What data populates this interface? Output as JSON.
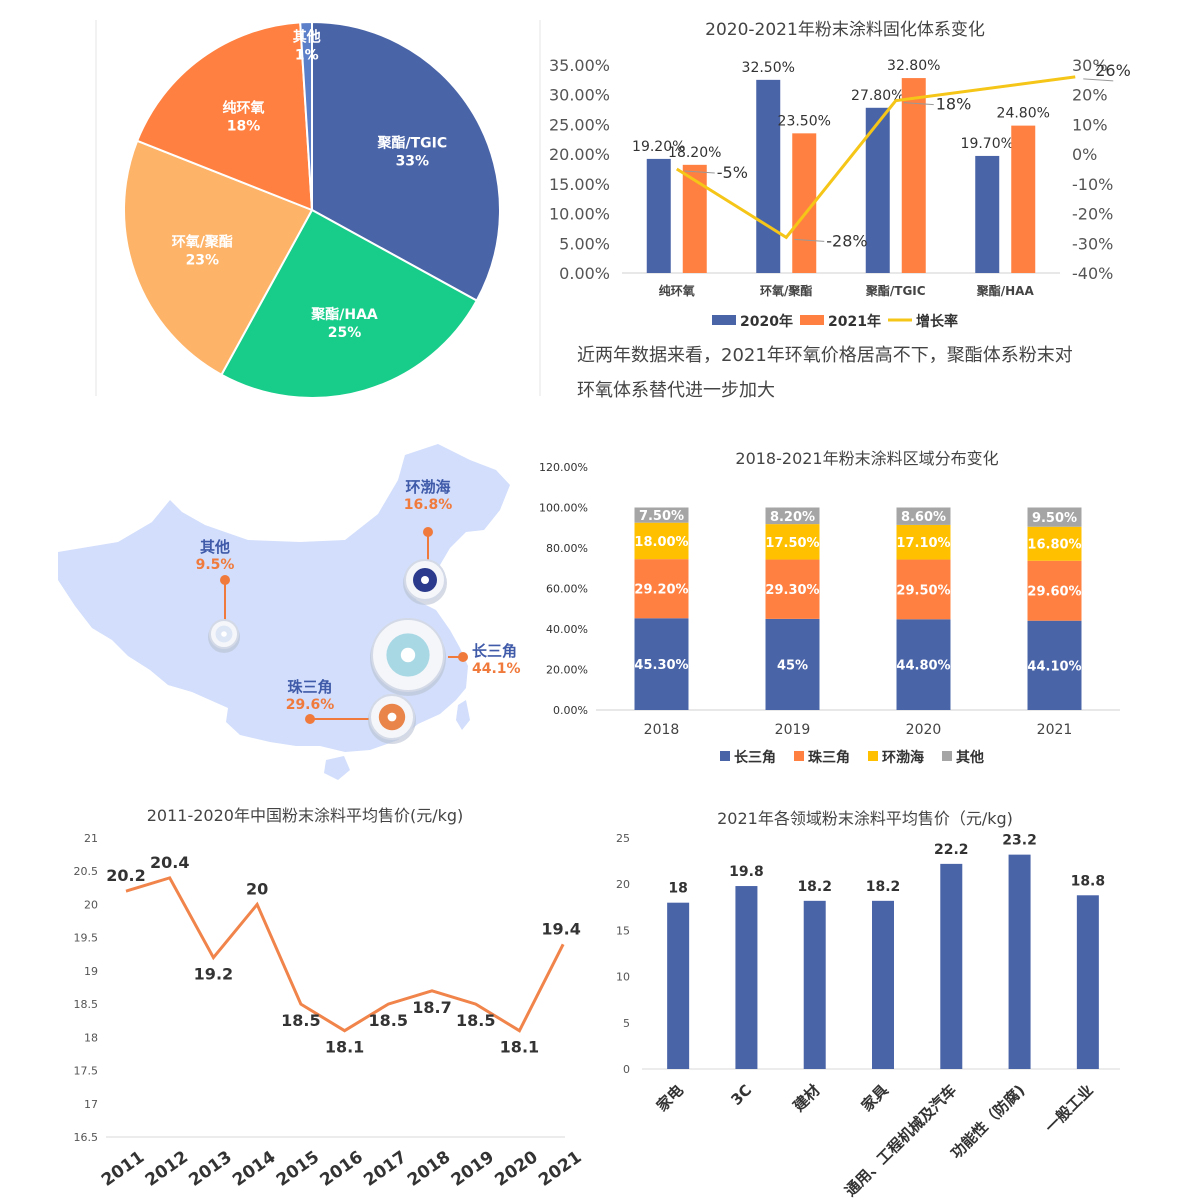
{
  "pie": {
    "chart_data": {
      "type": "pie",
      "slices": [
        {
          "label": "聚酯/TGIC",
          "value": 33,
          "display": "33%",
          "color": "#4A64A8"
        },
        {
          "label": "聚酯/HAA",
          "value": 25,
          "display": "25%",
          "color": "#18CC8A"
        },
        {
          "label": "环氧/聚酯",
          "value": 23,
          "display": "23%",
          "color": "#FDB368"
        },
        {
          "label": "纯环氧",
          "value": 18,
          "display": "18%",
          "color": "#FF8040"
        },
        {
          "label": "其他",
          "value": 1,
          "display": "1%",
          "color": "#5B7FC9"
        }
      ]
    }
  },
  "combo": {
    "chart_data": {
      "type": "bar",
      "title": "2020-2021年粉末涂料固化体系变化",
      "categories": [
        "纯环氧",
        "环氧/聚酯",
        "聚酯/TGIC",
        "聚酯/HAA"
      ],
      "series": [
        {
          "name": "2020年",
          "values": [
            19.2,
            32.5,
            27.8,
            19.7
          ],
          "labels": [
            "19.20%",
            "32.50%",
            "27.80%",
            "19.70%"
          ],
          "color": "#4A64A8"
        },
        {
          "name": "2021年",
          "values": [
            18.2,
            23.5,
            32.8,
            24.8
          ],
          "labels": [
            "18.20%",
            "23.50%",
            "32.80%",
            "24.80%"
          ],
          "color": "#FF8040"
        }
      ],
      "line": {
        "name": "增长率",
        "values": [
          -5,
          -28,
          18,
          26
        ],
        "labels": [
          "-5%",
          "-28%",
          "18%",
          "26%"
        ],
        "color": "#F5C518"
      },
      "ylim_left": [
        0,
        35
      ],
      "yticks_left": [
        "0.00%",
        "5.00%",
        "10.00%",
        "15.00%",
        "20.00%",
        "25.00%",
        "30.00%",
        "35.00%"
      ],
      "ylim_right": [
        -40,
        30
      ],
      "yticks_right": [
        "-40%",
        "-30%",
        "-20%",
        "-10%",
        "0%",
        "10%",
        "20%",
        "30%"
      ]
    },
    "caption_line1": "近两年数据来看，2021年环氧价格居高不下，聚酯体系粉末对",
    "caption_line2": "环氧体系替代进一步加大"
  },
  "map": {
    "regions": [
      {
        "name": "环渤海",
        "value": "16.8%"
      },
      {
        "name": "其他",
        "value": "9.5%"
      },
      {
        "name": "长三角",
        "value": "44.1%"
      },
      {
        "name": "珠三角",
        "value": "29.6%"
      }
    ],
    "colors": {
      "land": "#D2DEFB",
      "name": "#3F5AA8",
      "value": "#F07A3C"
    }
  },
  "stacked": {
    "chart_data": {
      "type": "bar",
      "title": "2018-2021年粉末涂料区域分布变化",
      "categories": [
        "2018",
        "2019",
        "2020",
        "2021"
      ],
      "series": [
        {
          "name": "长三角",
          "values": [
            45.3,
            45,
            44.8,
            44.1
          ],
          "labels": [
            "45.30%",
            "45%",
            "44.80%",
            "44.10%"
          ],
          "color": "#4A64A8"
        },
        {
          "name": "珠三角",
          "values": [
            29.2,
            29.3,
            29.5,
            29.6
          ],
          "labels": [
            "29.20%",
            "29.30%",
            "29.50%",
            "29.60%"
          ],
          "color": "#FF8040"
        },
        {
          "name": "环渤海",
          "values": [
            18.0,
            17.5,
            17.1,
            16.8
          ],
          "labels": [
            "18.00%",
            "17.50%",
            "17.10%",
            "16.80%"
          ],
          "color": "#FFC000"
        },
        {
          "name": "其他",
          "values": [
            7.5,
            8.2,
            8.6,
            9.5
          ],
          "labels": [
            "7.50%",
            "8.20%",
            "8.60%",
            "9.50%"
          ],
          "color": "#A5A5A5"
        }
      ],
      "ylim": [
        0,
        120
      ],
      "yticks": [
        "0.00%",
        "20.00%",
        "40.00%",
        "60.00%",
        "80.00%",
        "100.00%",
        "120.00%"
      ]
    }
  },
  "price_line": {
    "chart_data": {
      "type": "line",
      "title": "2011-2020年中国粉末涂料平均售价(元/kg)",
      "x": [
        "2011",
        "2012",
        "2013",
        "2014",
        "2015",
        "2016",
        "2017",
        "2018",
        "2019",
        "2020",
        "2021"
      ],
      "values": [
        20.2,
        20.4,
        19.2,
        20,
        18.5,
        18.1,
        18.5,
        18.7,
        18.5,
        18.1,
        19.4
      ],
      "labels": [
        "20.2",
        "20.4",
        "19.2",
        "20",
        "18.5",
        "18.1",
        "18.5",
        "18.7",
        "18.5",
        "18.1",
        "19.4"
      ],
      "ylim": [
        16.5,
        21
      ],
      "yticks": [
        "16.5",
        "17",
        "17.5",
        "18",
        "18.5",
        "19",
        "19.5",
        "20",
        "20.5",
        "21"
      ],
      "color": "#F0844A"
    }
  },
  "sector_bar": {
    "chart_data": {
      "type": "bar",
      "title": "2021年各领域粉末涂料平均售价（元/kg)",
      "categories": [
        "家电",
        "3C",
        "建材",
        "家具",
        "通用、工程机械及汽车",
        "功能性（防腐)",
        "一般工业"
      ],
      "values": [
        18,
        19.8,
        18.2,
        18.2,
        22.2,
        23.2,
        18.8
      ],
      "labels": [
        "18",
        "19.8",
        "18.2",
        "18.2",
        "22.2",
        "23.2",
        "18.8"
      ],
      "ylim": [
        0,
        25
      ],
      "yticks": [
        "0",
        "5",
        "10",
        "15",
        "20",
        "25"
      ],
      "color": "#4A64A8"
    }
  }
}
